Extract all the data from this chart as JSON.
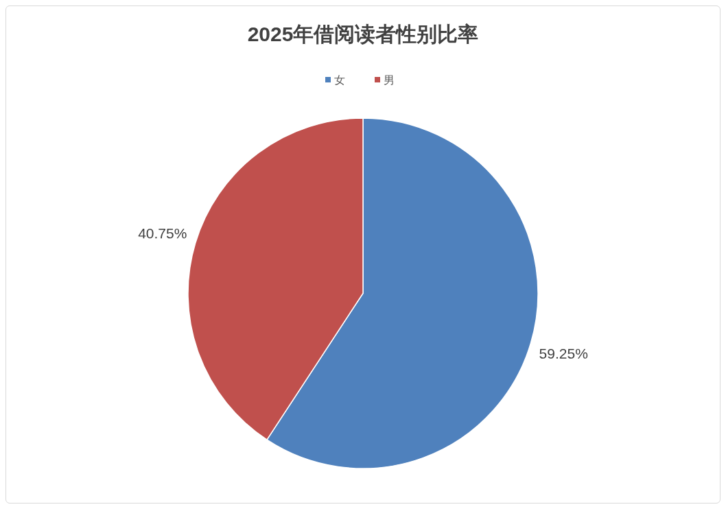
{
  "chart_data": {
    "type": "pie",
    "title": "2025年借阅读者性别比率",
    "categories": [
      "女",
      "男"
    ],
    "values": [
      59.25,
      40.75
    ],
    "colors": [
      "#4f81bd",
      "#c0504d"
    ],
    "value_labels": [
      "59.25%",
      "40.75%"
    ],
    "legend": "top"
  }
}
